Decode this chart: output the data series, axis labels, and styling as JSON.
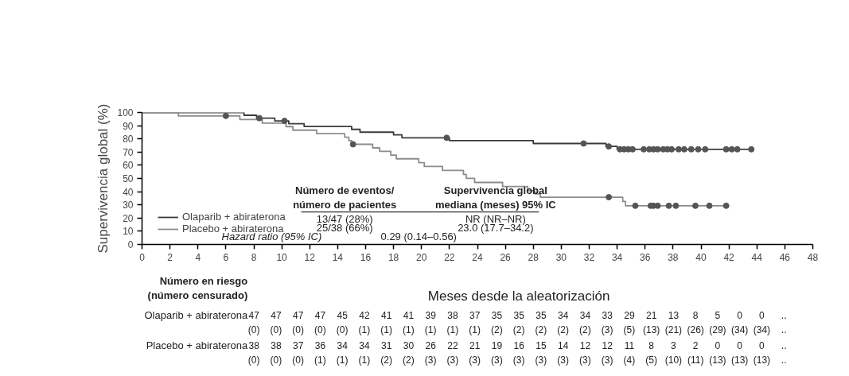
{
  "chart_data": {
    "type": "step",
    "xlabel": "Meses desde la aleatorización",
    "ylabel": "Supervivencia global (%)",
    "xlim": [
      0,
      48
    ],
    "xticks": [
      0,
      2,
      4,
      6,
      8,
      10,
      12,
      14,
      16,
      18,
      20,
      22,
      24,
      26,
      28,
      30,
      32,
      34,
      36,
      38,
      40,
      42,
      44,
      46,
      48
    ],
    "ylim": [
      0,
      100
    ],
    "yticks": [
      0,
      10,
      20,
      30,
      40,
      50,
      60,
      70,
      80,
      90,
      100
    ],
    "grid": false,
    "legend": "bottom left",
    "line_style": "solid",
    "series": [
      {
        "name": "Olaparib + abiraterona",
        "color": "#3a3a3a",
        "x": [
          0,
          7.3,
          8.2,
          9.5,
          10.5,
          11.6,
          15.0,
          15.6,
          18.0,
          18.6,
          22.0,
          28.0,
          33.2,
          34.0,
          43.8
        ],
        "values": [
          100,
          97.9,
          95.7,
          93.6,
          91.5,
          89.4,
          87.2,
          85.1,
          83.0,
          80.8,
          78.7,
          76.5,
          74.3,
          72.1,
          72.1
        ]
      },
      {
        "name": "Placebo + abiraterona",
        "color": "#8c8c8c",
        "x": [
          0,
          2.6,
          7.0,
          8.6,
          10.3,
          10.8,
          12.5,
          14.5,
          14.8,
          15.0,
          16.5,
          17.0,
          17.8,
          18.2,
          19.8,
          20.2,
          21.5,
          23.0,
          23.2,
          23.8,
          25.8,
          27.6,
          28.1,
          28.5,
          34.4,
          34.6,
          41.8
        ],
        "values": [
          100,
          97.4,
          94.7,
          92.0,
          89.3,
          86.6,
          84.0,
          81.3,
          78.6,
          75.9,
          73.2,
          70.5,
          67.7,
          64.9,
          62.0,
          59.1,
          56.1,
          53.1,
          50.1,
          47.0,
          43.9,
          40.7,
          38.4,
          35.8,
          32.6,
          29.3,
          29.3
        ]
      },
      {
        "type": "scatter",
        "marker": "circle",
        "color": "#555555",
        "x": [
          8.4,
          10.2,
          21.8,
          31.6,
          33.4,
          34.2,
          34.5,
          34.8,
          35.1,
          35.9,
          36.3,
          36.6,
          36.9,
          37.3,
          37.6,
          37.9,
          38.4,
          38.8,
          39.3,
          39.8,
          40.3,
          41.8,
          42.2,
          42.6,
          43.6
        ],
        "values": [
          95.7,
          93.6,
          80.8,
          76.5,
          74.3,
          72.1,
          72.1,
          72.1,
          72.1,
          72.1,
          72.1,
          72.1,
          72.1,
          72.1,
          72.1,
          72.1,
          72.1,
          72.1,
          72.1,
          72.1,
          72.1,
          72.1,
          72.1,
          72.1,
          72.1
        ]
      },
      {
        "type": "scatter",
        "marker": "circle",
        "color": "#555555",
        "x": [
          6.0,
          15.1,
          33.4,
          35.3,
          36.4,
          36.6,
          36.9,
          37.7,
          38.2,
          39.6,
          40.6,
          41.8
        ],
        "values": [
          97.4,
          75.9,
          35.8,
          29.3,
          29.3,
          29.3,
          29.3,
          29.3,
          29.3,
          29.3,
          29.3,
          29.3
        ]
      }
    ],
    "annotations": [
      "Número de eventos/\nnúmero de pacientes",
      "Supervivencia global\nmediana (meses) 95% IC",
      "13/47 (28%)",
      "NR (NR–NR)",
      "25/38 (66%)",
      "23.0 (17.7–34.2)",
      "Hazard ratio (95% IC)",
      "0.29 (0.14–0.56)",
      "Número en riesgo\n(número censurado)",
      "47",
      "47",
      "47",
      "47",
      "45",
      "42",
      "41",
      "41",
      "39",
      "38",
      "37",
      "35",
      "35",
      "35",
      "34",
      "34",
      "33",
      "29",
      "21",
      "13",
      "8",
      "5",
      "0",
      "0",
      "..",
      "(0)",
      "(0)",
      "(0)",
      "(0)",
      "(0)",
      "(1)",
      "(1)",
      "(1)",
      "(1)",
      "(1)",
      "(1)",
      "(2)",
      "(2)",
      "(2)",
      "(2)",
      "(2)",
      "(3)",
      "(5)",
      "(13)",
      "(21)",
      "(26)",
      "(29)",
      "(34)",
      "(34)",
      "..",
      "38",
      "38",
      "37",
      "36",
      "34",
      "34",
      "31",
      "30",
      "26",
      "22",
      "21",
      "19",
      "16",
      "15",
      "14",
      "12",
      "12",
      "11",
      "8",
      "3",
      "2",
      "0",
      "0",
      "0",
      "..",
      "(0)",
      "(0)",
      "(0)",
      "(1)",
      "(1)",
      "(1)",
      "(2)",
      "(2)",
      "(3)",
      "(3)",
      "(3)",
      "(3)",
      "(3)",
      "(3)",
      "(3)",
      "(3)",
      "(3)",
      "(4)",
      "(5)",
      "(10)",
      "(11)",
      "(13)",
      "(13)",
      "(13)",
      ".."
    ]
  }
}
